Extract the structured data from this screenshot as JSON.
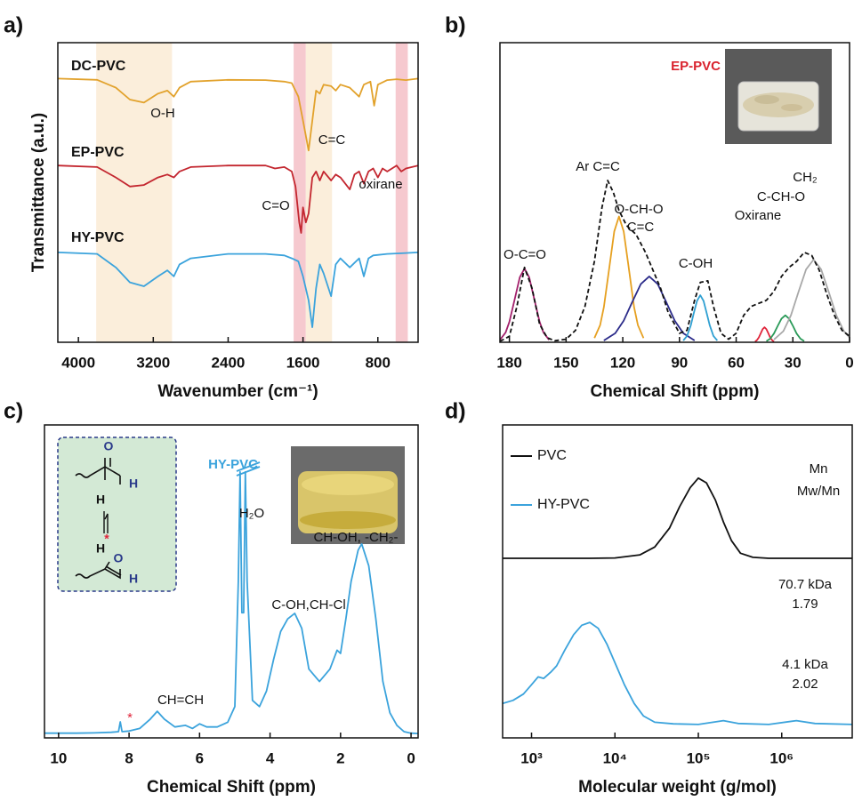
{
  "chart_data": [
    {
      "type": "line",
      "panel": "a)",
      "xlabel": "Wavenumber (cm⁻¹)",
      "ylabel": "Transmittance (a.u.)",
      "xlim": [
        4220,
        370
      ],
      "ylim": [
        0,
        100
      ],
      "xticks": [
        4000,
        3200,
        2400,
        1600,
        800
      ],
      "bands": [
        {
          "range": [
            3810,
            3000
          ],
          "color": "#fbeedb"
        },
        {
          "range": [
            1700,
            1570
          ],
          "color": "#f6c9cf"
        },
        {
          "range": [
            1570,
            1290
          ],
          "color": "#fbeedb"
        },
        {
          "range": [
            610,
            480
          ],
          "color": "#f6c9cf"
        }
      ],
      "series": [
        {
          "name": "DC-PVC",
          "color": "#e2a22c",
          "x": [
            4220,
            3800,
            3600,
            3450,
            3300,
            3150,
            3050,
            2980,
            2920,
            2800,
            2400,
            2000,
            1800,
            1720,
            1650,
            1600,
            1540,
            1500,
            1460,
            1420,
            1380,
            1300,
            1250,
            1200,
            1100,
            1000,
            950,
            880,
            840,
            800,
            700,
            600,
            500,
            370
          ],
          "values": [
            88,
            87.6,
            85,
            81,
            80,
            83,
            84,
            82,
            85,
            87,
            87.6,
            87.5,
            87,
            86.5,
            82,
            74,
            64,
            74,
            84,
            83,
            86,
            85.5,
            84,
            86,
            85,
            82,
            86,
            87,
            79,
            86,
            87.5,
            87.8,
            87.5,
            88
          ]
        },
        {
          "name": "EP-PVC",
          "color": "#c3262f",
          "x": [
            4220,
            3800,
            3600,
            3450,
            3300,
            3150,
            3050,
            2980,
            2920,
            2800,
            2400,
            2000,
            1900,
            1800,
            1720,
            1680,
            1640,
            1620,
            1600,
            1570,
            1540,
            1500,
            1460,
            1420,
            1380,
            1300,
            1250,
            1200,
            1100,
            1050,
            1000,
            950,
            900,
            850,
            800,
            750,
            700,
            600,
            550,
            500,
            370
          ],
          "values": [
            59,
            58.5,
            55,
            52,
            52.5,
            55,
            56,
            55,
            57,
            58.5,
            59,
            59,
            58,
            58.5,
            57,
            52,
            40,
            36.5,
            45,
            40,
            43,
            55,
            57,
            54,
            57,
            54,
            56,
            55,
            51,
            56,
            57,
            53,
            57,
            58,
            55,
            58,
            57,
            59,
            57,
            58,
            59
          ]
        },
        {
          "name": "HY-PVC",
          "color": "#3ba3dc",
          "x": [
            4220,
            3800,
            3600,
            3450,
            3300,
            3150,
            3050,
            2980,
            2920,
            2800,
            2400,
            2000,
            1800,
            1720,
            1650,
            1600,
            1540,
            1500,
            1460,
            1420,
            1380,
            1300,
            1250,
            1200,
            1100,
            1000,
            950,
            900,
            850,
            700,
            500,
            370
          ],
          "values": [
            30,
            29.5,
            25,
            20,
            18.7,
            22,
            24,
            22,
            26,
            28,
            29.5,
            29.5,
            29,
            28,
            27,
            22,
            14,
            5,
            18,
            26,
            23,
            15.4,
            26,
            28,
            25,
            28,
            22,
            28,
            29,
            29.5,
            29.8,
            30
          ]
        }
      ],
      "annotations": [
        {
          "text": "O-H"
        },
        {
          "text": "C=C"
        },
        {
          "text": "C=O"
        },
        {
          "text": "oxirane"
        }
      ]
    },
    {
      "type": "line",
      "panel": "b)",
      "xlabel": "Chemical Shift (ppm)",
      "xlim": [
        185,
        0
      ],
      "ylim": [
        0,
        100
      ],
      "xticks": [
        180,
        150,
        120,
        90,
        60,
        30,
        0
      ],
      "series": [
        {
          "color": "#a3206c",
          "x": [
            185,
            182,
            180,
            177,
            174.5,
            172,
            169.5,
            167,
            164,
            162,
            159
          ],
          "values": [
            0.8,
            3.3,
            6.8,
            14.9,
            21.7,
            24.6,
            21.7,
            14.9,
            6.8,
            3.3,
            0.8
          ]
        },
        {
          "color": "#e6a020",
          "x": [
            135,
            132,
            130,
            127,
            124.5,
            122,
            119.5,
            117,
            114,
            112,
            109
          ],
          "values": [
            1.4,
            5.7,
            11.7,
            25.5,
            37,
            42,
            37,
            25.5,
            11.7,
            5.7,
            1.4
          ]
        },
        {
          "color": "#2c2c8a",
          "x": [
            130,
            124,
            119.5,
            115,
            110.5,
            106,
            101.5,
            97,
            92.5,
            88,
            82
          ],
          "values": [
            0.6,
            3,
            7.2,
            13.4,
            19.4,
            22,
            19.4,
            13.4,
            7.2,
            3,
            0.6
          ]
        },
        {
          "color": "#2fa0d2",
          "x": [
            88,
            86,
            84,
            82.5,
            80.75,
            79,
            77.25,
            75.5,
            74,
            72,
            70
          ],
          "values": [
            0.6,
            2.1,
            5.7,
            9.5,
            13.8,
            15.7,
            13.8,
            9.5,
            5.7,
            2.1,
            0.6
          ]
        },
        {
          "color": "#e0243a",
          "x": [
            50,
            49,
            48,
            47,
            46,
            45,
            44,
            43,
            42,
            41,
            40
          ],
          "values": [
            0.2,
            0.7,
            1.6,
            3,
            4.4,
            5,
            4.4,
            3,
            1.6,
            0.7,
            0.2
          ]
        },
        {
          "color": "#2a9a58",
          "x": [
            44,
            42,
            40,
            38,
            36,
            34,
            32,
            30,
            28,
            26,
            24
          ],
          "values": [
            0.4,
            1.2,
            2.9,
            5.5,
            7.9,
            9,
            7.9,
            5.5,
            2.9,
            1.2,
            0.4
          ]
        },
        {
          "color": "#a8a8a8",
          "x": [
            40,
            35,
            31,
            27,
            23,
            19,
            15,
            11,
            7,
            3,
            0
          ],
          "values": [
            0.9,
            3.7,
            9,
            16.8,
            24.3,
            27.6,
            24.3,
            16.8,
            9,
            3.7,
            1.6
          ]
        },
        {
          "color": "#111111",
          "linestyle": "dashed",
          "x": [
            185,
            180,
            176,
            172,
            168,
            164,
            160,
            156,
            150,
            145,
            140,
            135,
            131,
            128,
            125,
            122,
            118,
            113,
            108,
            104,
            100,
            96,
            90,
            86,
            82,
            79,
            75,
            72,
            68,
            64,
            60,
            56,
            52,
            48,
            44,
            40,
            36,
            32,
            28,
            24,
            20,
            16,
            12,
            8,
            4,
            0
          ],
          "values": [
            0.3,
            2,
            12,
            25,
            18,
            6,
            1.5,
            0.5,
            1,
            4,
            12,
            27,
            45,
            54,
            50,
            44,
            39,
            36,
            30,
            24,
            18,
            10,
            3,
            4,
            14,
            20,
            20.5,
            12,
            3,
            1,
            3,
            9,
            12,
            13,
            14,
            17,
            22,
            25,
            27,
            30,
            29,
            24,
            16,
            9,
            4,
            2
          ]
        }
      ],
      "annotations": [
        {
          "text": "EP-PVC",
          "color": "#d9232e"
        },
        {
          "text": "Ar C=C"
        },
        {
          "text": "O-CH-O"
        },
        {
          "text": "C=C"
        },
        {
          "text": "O-C=O"
        },
        {
          "text": "C-OH"
        },
        {
          "text": "Oxirane"
        },
        {
          "text": "C-CH-O"
        },
        {
          "text": "CH₂"
        }
      ]
    },
    {
      "type": "line",
      "panel": "c)",
      "xlabel": "Chemical Shift (ppm)",
      "xlim": [
        10.4,
        -0.2
      ],
      "ylim": [
        0,
        100
      ],
      "xticks": [
        10,
        8,
        6,
        4,
        2,
        0
      ],
      "series": [
        {
          "color": "#3ba3dc",
          "x": [
            10.4,
            9.5,
            9,
            8.5,
            8.3,
            8.25,
            8.2,
            8,
            7.7,
            7.4,
            7.2,
            7,
            6.7,
            6.4,
            6.2,
            6,
            5.8,
            5.5,
            5.2,
            5,
            4.9,
            4.85,
            4.8,
            4.75,
            4.7,
            4.65,
            4.5,
            4.3,
            4.1,
            3.9,
            3.7,
            3.5,
            3.3,
            3.1,
            2.9,
            2.6,
            2.3,
            2.1,
            2,
            1.85,
            1.7,
            1.5,
            1.4,
            1.2,
            1,
            0.8,
            0.6,
            0.4,
            0.2,
            0,
            -0.2
          ],
          "values": [
            1.5,
            1.5,
            1.6,
            1.8,
            2,
            5.1,
            2,
            2.2,
            3,
            6,
            8.5,
            6,
            3.5,
            4,
            3,
            4.5,
            3.5,
            3.5,
            5,
            10,
            50,
            85,
            40,
            40,
            85,
            50,
            12,
            10,
            15,
            25,
            34,
            38,
            39.8,
            35,
            22,
            18,
            22,
            28,
            27,
            38,
            50,
            60,
            62,
            55,
            38,
            18,
            8,
            4,
            2,
            1.5,
            1.4
          ]
        }
      ],
      "annotations": [
        {
          "text": "HY-PVC",
          "color": "#3ba3dc"
        },
        {
          "text": "H₂O"
        },
        {
          "text": "CH=CH"
        },
        {
          "text": "C-OH,CH-Cl"
        },
        {
          "text": "CH-OH, -CH₂-"
        },
        {
          "text": "*",
          "color": "#e0243a"
        }
      ],
      "scheme_labels": [
        {
          "text": "O",
          "color": "#2a3a8a"
        },
        {
          "text": "H",
          "color": "#2a3a8a"
        },
        {
          "text": "H"
        },
        {
          "text": "*",
          "color": "#e0243a"
        },
        {
          "text": "H"
        },
        {
          "text": "O",
          "color": "#2a3a8a"
        },
        {
          "text": "H",
          "color": "#2a3a8a"
        }
      ]
    },
    {
      "type": "line",
      "panel": "d)",
      "xlabel": "Molecular weight (g/mol)",
      "log": true,
      "xlim": [
        450,
        7000000
      ],
      "ylim": [
        0,
        100
      ],
      "xticks": [
        {
          "value": 1000,
          "label": "10³"
        },
        {
          "value": 10000,
          "label": "10⁴"
        },
        {
          "value": 100000,
          "label": "10⁵"
        },
        {
          "value": 1000000,
          "label": "10⁶"
        }
      ],
      "series": [
        {
          "name": "PVC",
          "color": "#111111",
          "x": [
            450,
            1000,
            5000,
            10000,
            20000,
            30000,
            45000,
            60000,
            80000,
            100000,
            125000,
            160000,
            200000,
            250000,
            320000,
            450000,
            700000,
            7000000
          ],
          "values": [
            57.4,
            57.4,
            57.4,
            57.5,
            58.5,
            61,
            67,
            74,
            80,
            83,
            81.5,
            76,
            69,
            63,
            59,
            57.7,
            57.4,
            57.4
          ]
        },
        {
          "name": "HY-PVC",
          "color": "#3ba3dc",
          "x": [
            450,
            600,
            800,
            1000,
            1200,
            1400,
            1700,
            2000,
            2500,
            3200,
            4000,
            5000,
            6300,
            8000,
            10000,
            13000,
            17000,
            22000,
            30000,
            50000,
            100000,
            200000,
            300000,
            700000,
            1500000,
            2500000,
            7000000
          ],
          "values": [
            11,
            12,
            14,
            17,
            19.5,
            19,
            21,
            23,
            28,
            33,
            36,
            36.9,
            35,
            30,
            24,
            17,
            11,
            7,
            5,
            4.5,
            4.3,
            5.5,
            4.6,
            4.3,
            5.5,
            4.6,
            4.3
          ]
        }
      ],
      "annotations": [
        {
          "text": "Mn"
        },
        {
          "text": "Mw/Mn"
        },
        {
          "text": "70.7 kDa"
        },
        {
          "text": "1.79"
        },
        {
          "text": "4.1 kDa"
        },
        {
          "text": "2.02"
        }
      ]
    }
  ]
}
